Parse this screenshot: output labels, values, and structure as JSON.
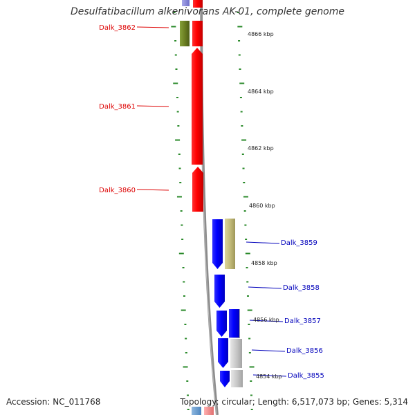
{
  "title": "Desulfatibacillum alkenivorans AK-01, complete genome",
  "footer": {
    "accession": "Accession: NC_011768",
    "topology": "Topology: circular; Length: 6,517,073 bp; Genes: 5,314"
  },
  "scale_labels": [
    "4866 kbp",
    "4864 kbp",
    "4862 kbp",
    "4860 kbp",
    "4858 kbp",
    "4856 kbp",
    "4854 kbp"
  ],
  "genes": [
    {
      "name": "Dalk_3862",
      "color": "#dd0000"
    },
    {
      "name": "Dalk_3861",
      "color": "#dd0000"
    },
    {
      "name": "Dalk_3860",
      "color": "#dd0000"
    },
    {
      "name": "Dalk_3859",
      "color": "#0000bb"
    },
    {
      "name": "Dalk_3858",
      "color": "#0000bb"
    },
    {
      "name": "Dalk_3857",
      "color": "#0000bb"
    },
    {
      "name": "Dalk_3856",
      "color": "#0000bb"
    },
    {
      "name": "Dalk_3855",
      "color": "#0000bb"
    }
  ],
  "colors": {
    "forward_strand": "#ff0000",
    "reverse_strand": "#0000ff",
    "ticks": "#2a8a2a",
    "backbone": "#888888",
    "olive": "#6b7f22",
    "khaki": "#c4bc7a",
    "grey": "#c8c8c8"
  }
}
